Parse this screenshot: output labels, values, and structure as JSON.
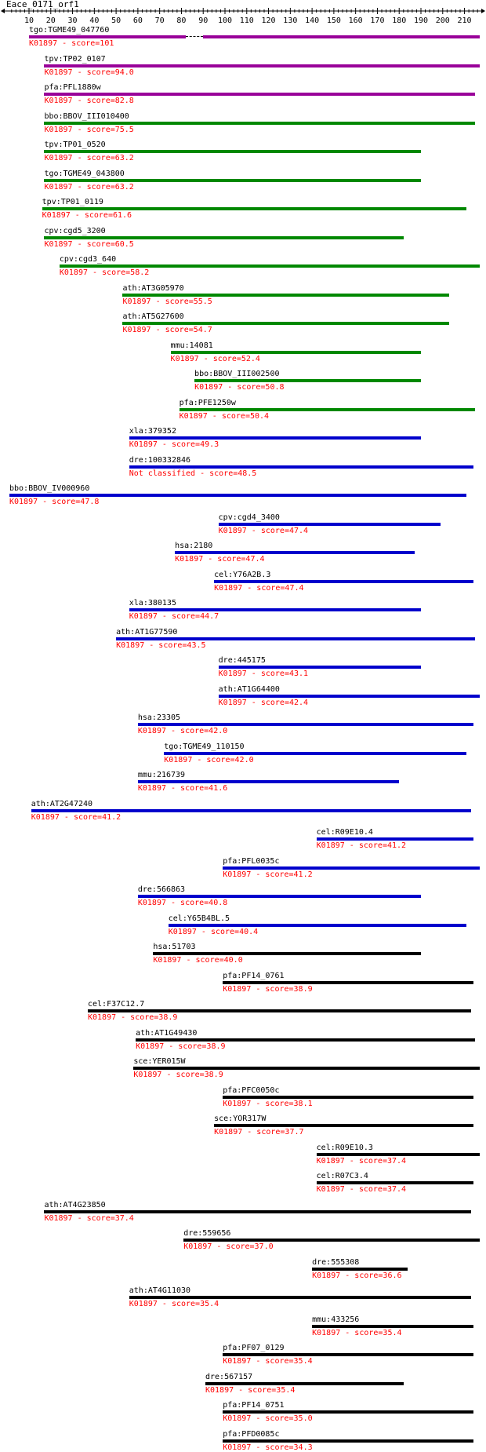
{
  "title": "Eace_0171_orf1",
  "ruler": {
    "min": 1,
    "max": 217,
    "ticks": [
      10,
      20,
      30,
      40,
      50,
      60,
      70,
      80,
      90,
      100,
      110,
      120,
      130,
      140,
      150,
      160,
      170,
      180,
      190,
      200,
      210
    ]
  },
  "colors": {
    "purple": "#990099",
    "green": "#008800",
    "blue": "#0000cc",
    "black": "#000000",
    "score": "#ff0000"
  },
  "hits": [
    {
      "id": "tgo:TGME49_047760",
      "ko": "K01897",
      "score": "101",
      "start": 10,
      "end": 217,
      "color": "purple",
      "gap": [
        82,
        90
      ]
    },
    {
      "id": "tpv:TP02_0107",
      "ko": "K01897",
      "score": "94.0",
      "start": 17,
      "end": 217,
      "color": "purple"
    },
    {
      "id": "pfa:PFL1880w",
      "ko": "K01897",
      "score": "82.8",
      "start": 17,
      "end": 215,
      "color": "purple"
    },
    {
      "id": "bbo:BBOV_III010400",
      "ko": "K01897",
      "score": "75.5",
      "start": 17,
      "end": 215,
      "color": "green"
    },
    {
      "id": "tpv:TP01_0520",
      "ko": "K01897",
      "score": "63.2",
      "start": 17,
      "end": 190,
      "color": "green"
    },
    {
      "id": "tgo:TGME49_043800",
      "ko": "K01897",
      "score": "63.2",
      "start": 17,
      "end": 190,
      "color": "green"
    },
    {
      "id": "tpv:TP01_0119",
      "ko": "K01897",
      "score": "61.6",
      "start": 16,
      "end": 211,
      "color": "green"
    },
    {
      "id": "cpv:cgd5_3200",
      "ko": "K01897",
      "score": "60.5",
      "start": 17,
      "end": 182,
      "color": "green"
    },
    {
      "id": "cpv:cgd3_640",
      "ko": "K01897",
      "score": "58.2",
      "start": 24,
      "end": 217,
      "color": "green"
    },
    {
      "id": "ath:AT3G05970",
      "ko": "K01897",
      "score": "55.5",
      "start": 53,
      "end": 203,
      "color": "green"
    },
    {
      "id": "ath:AT5G27600",
      "ko": "K01897",
      "score": "54.7",
      "start": 53,
      "end": 203,
      "color": "green"
    },
    {
      "id": "mmu:14081",
      "ko": "K01897",
      "score": "52.4",
      "start": 75,
      "end": 190,
      "color": "green"
    },
    {
      "id": "bbo:BBOV_III002500",
      "ko": "K01897",
      "score": "50.8",
      "start": 86,
      "end": 190,
      "color": "green"
    },
    {
      "id": "pfa:PFE1250w",
      "ko": "K01897",
      "score": "50.4",
      "start": 79,
      "end": 215,
      "color": "green"
    },
    {
      "id": "xla:379352",
      "ko": "K01897",
      "score": "49.3",
      "start": 56,
      "end": 190,
      "color": "blue"
    },
    {
      "id": "dre:100332846",
      "ko": "Not classified",
      "score": "48.5",
      "start": 56,
      "end": 214,
      "color": "blue"
    },
    {
      "id": "bbo:BBOV_IV000960",
      "ko": "K01897",
      "score": "47.8",
      "start": 1,
      "end": 211,
      "color": "blue"
    },
    {
      "id": "cpv:cgd4_3400",
      "ko": "K01897",
      "score": "47.4",
      "start": 97,
      "end": 199,
      "color": "blue"
    },
    {
      "id": "hsa:2180",
      "ko": "K01897",
      "score": "47.4",
      "start": 77,
      "end": 187,
      "color": "blue"
    },
    {
      "id": "cel:Y76A2B.3",
      "ko": "K01897",
      "score": "47.4",
      "start": 95,
      "end": 214,
      "color": "blue"
    },
    {
      "id": "xla:380135",
      "ko": "K01897",
      "score": "44.7",
      "start": 56,
      "end": 190,
      "color": "blue"
    },
    {
      "id": "ath:AT1G77590",
      "ko": "K01897",
      "score": "43.5",
      "start": 50,
      "end": 215,
      "color": "blue"
    },
    {
      "id": "dre:445175",
      "ko": "K01897",
      "score": "43.1",
      "start": 97,
      "end": 190,
      "color": "blue"
    },
    {
      "id": "ath:AT1G64400",
      "ko": "K01897",
      "score": "42.4",
      "start": 97,
      "end": 217,
      "color": "blue"
    },
    {
      "id": "hsa:23305",
      "ko": "K01897",
      "score": "42.0",
      "start": 60,
      "end": 214,
      "color": "blue"
    },
    {
      "id": "tgo:TGME49_110150",
      "ko": "K01897",
      "score": "42.0",
      "start": 72,
      "end": 211,
      "color": "blue"
    },
    {
      "id": "mmu:216739",
      "ko": "K01897",
      "score": "41.6",
      "start": 60,
      "end": 180,
      "color": "blue"
    },
    {
      "id": "ath:AT2G47240",
      "ko": "K01897",
      "score": "41.2",
      "start": 11,
      "end": 213,
      "color": "blue"
    },
    {
      "id": "cel:R09E10.4",
      "ko": "K01897",
      "score": "41.2",
      "start": 142,
      "end": 214,
      "color": "blue"
    },
    {
      "id": "pfa:PFL0035c",
      "ko": "K01897",
      "score": "41.2",
      "start": 99,
      "end": 217,
      "color": "blue"
    },
    {
      "id": "dre:566863",
      "ko": "K01897",
      "score": "40.8",
      "start": 60,
      "end": 190,
      "color": "blue"
    },
    {
      "id": "cel:Y65B4BL.5",
      "ko": "K01897",
      "score": "40.4",
      "start": 74,
      "end": 211,
      "color": "blue"
    },
    {
      "id": "hsa:51703",
      "ko": "K01897",
      "score": "40.0",
      "start": 67,
      "end": 190,
      "color": "black"
    },
    {
      "id": "pfa:PF14_0761",
      "ko": "K01897",
      "score": "38.9",
      "start": 99,
      "end": 214,
      "color": "black"
    },
    {
      "id": "cel:F37C12.7",
      "ko": "K01897",
      "score": "38.9",
      "start": 37,
      "end": 213,
      "color": "black"
    },
    {
      "id": "ath:AT1G49430",
      "ko": "K01897",
      "score": "38.9",
      "start": 59,
      "end": 215,
      "color": "black"
    },
    {
      "id": "sce:YER015W",
      "ko": "K01897",
      "score": "38.9",
      "start": 58,
      "end": 217,
      "color": "black"
    },
    {
      "id": "pfa:PFC0050c",
      "ko": "K01897",
      "score": "38.1",
      "start": 99,
      "end": 214,
      "color": "black"
    },
    {
      "id": "sce:YOR317W",
      "ko": "K01897",
      "score": "37.7",
      "start": 95,
      "end": 214,
      "color": "black"
    },
    {
      "id": "cel:R09E10.3",
      "ko": "K01897",
      "score": "37.4",
      "start": 142,
      "end": 217,
      "color": "black"
    },
    {
      "id": "cel:R07C3.4",
      "ko": "K01897",
      "score": "37.4",
      "start": 142,
      "end": 214,
      "color": "black"
    },
    {
      "id": "ath:AT4G23850",
      "ko": "K01897",
      "score": "37.4",
      "start": 17,
      "end": 213,
      "color": "black"
    },
    {
      "id": "dre:559656",
      "ko": "K01897",
      "score": "37.0",
      "start": 81,
      "end": 217,
      "color": "black"
    },
    {
      "id": "dre:555308",
      "ko": "K01897",
      "score": "36.6",
      "start": 140,
      "end": 184,
      "color": "black"
    },
    {
      "id": "ath:AT4G11030",
      "ko": "K01897",
      "score": "35.4",
      "start": 56,
      "end": 213,
      "color": "black"
    },
    {
      "id": "mmu:433256",
      "ko": "K01897",
      "score": "35.4",
      "start": 140,
      "end": 214,
      "color": "black"
    },
    {
      "id": "pfa:PF07_0129",
      "ko": "K01897",
      "score": "35.4",
      "start": 99,
      "end": 214,
      "color": "black"
    },
    {
      "id": "dre:567157",
      "ko": "K01897",
      "score": "35.4",
      "start": 91,
      "end": 182,
      "color": "black"
    },
    {
      "id": "pfa:PF14_0751",
      "ko": "K01897",
      "score": "35.0",
      "start": 99,
      "end": 214,
      "color": "black"
    },
    {
      "id": "pfa:PFD0085c",
      "ko": "K01897",
      "score": "34.3",
      "start": 99,
      "end": 214,
      "color": "black"
    }
  ]
}
